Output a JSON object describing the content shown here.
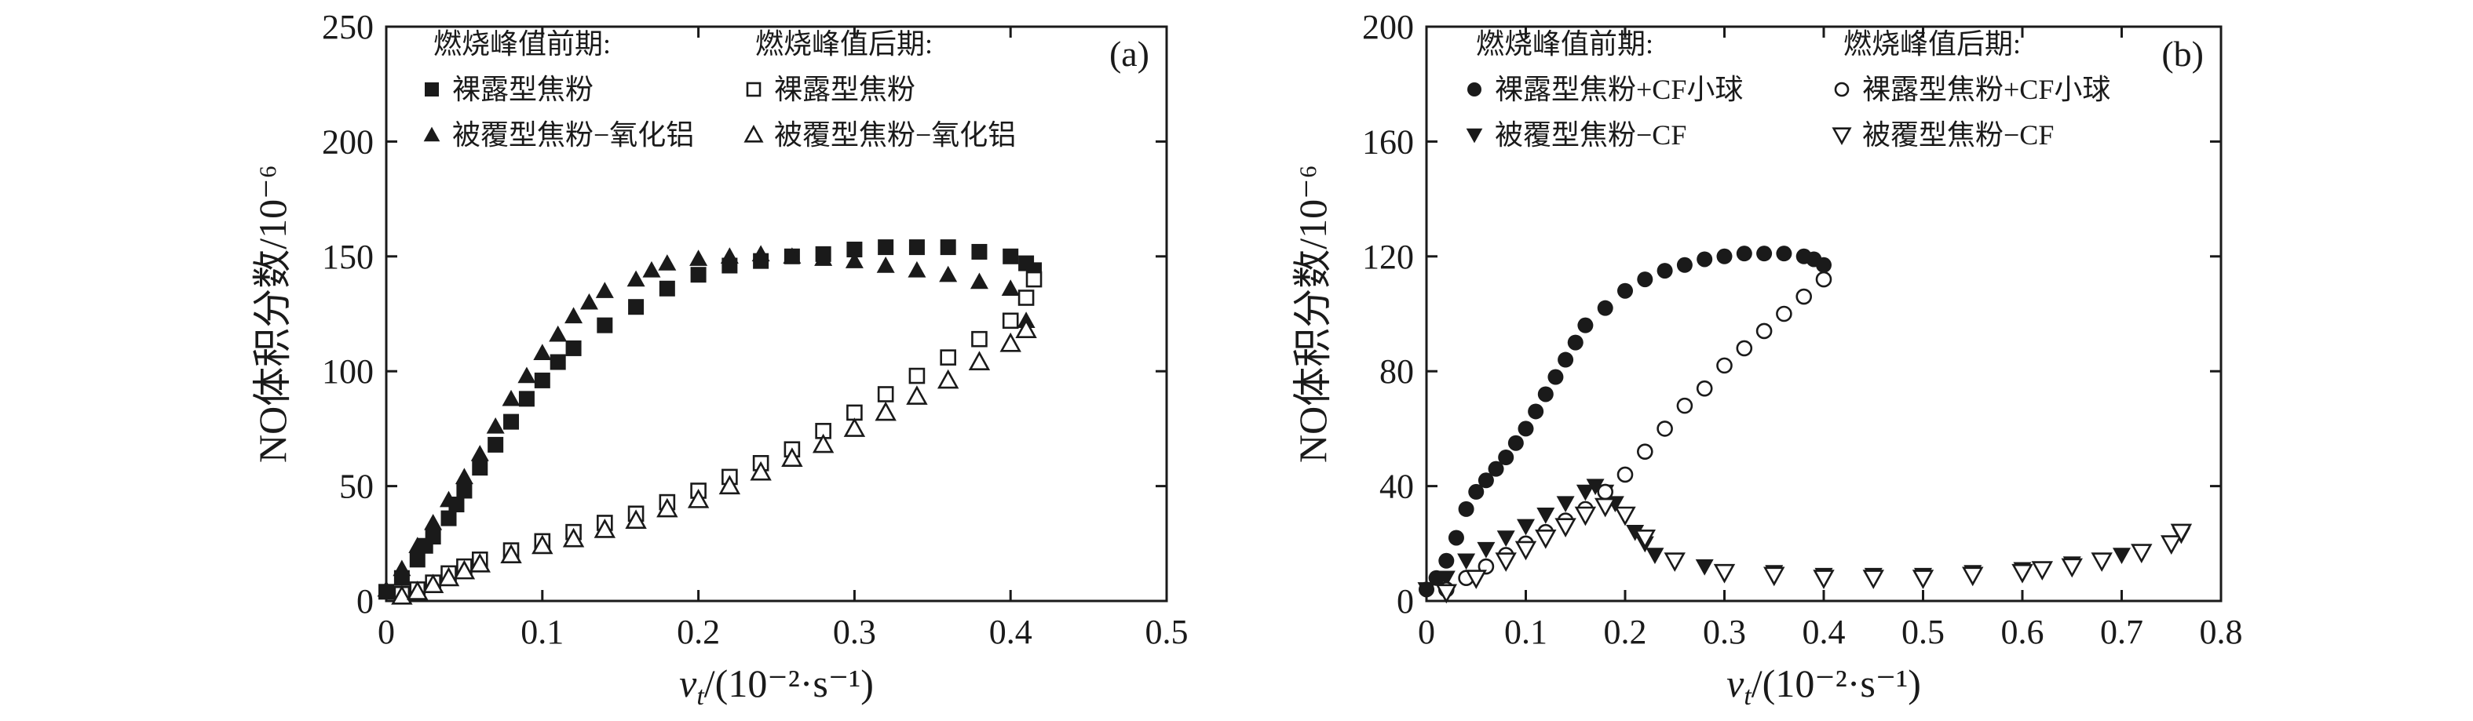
{
  "chart_data": [
    {
      "type": "scatter",
      "panel_tag": "(a)",
      "xlabel": "vt/(10⁻²·s⁻¹)",
      "xlabel_var": "v",
      "xlabel_sub": "t",
      "xlabel_unit": "/(10⁻²·s⁻¹)",
      "ylabel": "NO体积分数/10⁻⁶",
      "xlim": [
        0,
        0.5
      ],
      "ylim": [
        0,
        250
      ],
      "xticks": [
        "0",
        "0.1",
        "0.2",
        "0.3",
        "0.4",
        "0.5"
      ],
      "yticks": [
        "0",
        "50",
        "100",
        "150",
        "200",
        "250"
      ],
      "legend_headers": [
        "燃烧峰值前期:",
        "燃烧峰值后期:"
      ],
      "series": [
        {
          "name": "裸露型焦粉",
          "group": "燃烧峰值前期",
          "marker": "square-filled",
          "x": [
            0.0,
            0.01,
            0.02,
            0.025,
            0.03,
            0.04,
            0.045,
            0.05,
            0.06,
            0.07,
            0.08,
            0.09,
            0.1,
            0.11,
            0.12,
            0.14,
            0.16,
            0.18,
            0.2,
            0.22,
            0.24,
            0.26,
            0.28,
            0.3,
            0.32,
            0.34,
            0.36,
            0.38,
            0.4,
            0.41,
            0.415
          ],
          "y": [
            4,
            10,
            18,
            24,
            28,
            36,
            42,
            48,
            58,
            68,
            78,
            88,
            96,
            104,
            110,
            120,
            128,
            136,
            142,
            146,
            148,
            150,
            151,
            153,
            154,
            154,
            154,
            152,
            150,
            147,
            144
          ]
        },
        {
          "name": "被覆型焦粉−氧化铝",
          "group": "燃烧峰值前期",
          "marker": "triangle-filled",
          "x": [
            0.0,
            0.01,
            0.02,
            0.03,
            0.04,
            0.05,
            0.06,
            0.07,
            0.08,
            0.09,
            0.1,
            0.11,
            0.12,
            0.13,
            0.14,
            0.16,
            0.17,
            0.18,
            0.2,
            0.22,
            0.24,
            0.26,
            0.28,
            0.3,
            0.32,
            0.34,
            0.36,
            0.38,
            0.4,
            0.41
          ],
          "y": [
            5,
            14,
            24,
            34,
            44,
            54,
            64,
            76,
            88,
            98,
            108,
            116,
            124,
            130,
            135,
            140,
            144,
            147,
            149,
            150,
            151,
            150,
            149,
            148,
            146,
            144,
            142,
            139,
            136,
            122
          ]
        },
        {
          "name": "裸露型焦粉",
          "group": "燃烧峰值后期",
          "marker": "square-open",
          "x": [
            0.01,
            0.02,
            0.03,
            0.04,
            0.05,
            0.06,
            0.08,
            0.1,
            0.12,
            0.14,
            0.16,
            0.18,
            0.2,
            0.22,
            0.24,
            0.26,
            0.28,
            0.3,
            0.32,
            0.34,
            0.36,
            0.38,
            0.4,
            0.41,
            0.415
          ],
          "y": [
            3,
            5,
            8,
            12,
            15,
            18,
            22,
            26,
            30,
            34,
            38,
            43,
            48,
            54,
            60,
            66,
            74,
            82,
            90,
            98,
            106,
            114,
            122,
            132,
            140
          ]
        },
        {
          "name": "被覆型焦粉−氧化铝",
          "group": "燃烧峰值后期",
          "marker": "triangle-open",
          "x": [
            0.01,
            0.02,
            0.03,
            0.04,
            0.05,
            0.06,
            0.08,
            0.1,
            0.12,
            0.14,
            0.16,
            0.18,
            0.2,
            0.22,
            0.24,
            0.26,
            0.28,
            0.3,
            0.32,
            0.34,
            0.36,
            0.38,
            0.4,
            0.41
          ],
          "y": [
            2,
            4,
            7,
            10,
            13,
            16,
            20,
            24,
            27,
            31,
            35,
            40,
            44,
            50,
            56,
            62,
            68,
            75,
            82,
            89,
            96,
            104,
            112,
            118
          ]
        }
      ]
    },
    {
      "type": "scatter",
      "panel_tag": "(b)",
      "xlabel": "vt/(10⁻²·s⁻¹)",
      "xlabel_var": "v",
      "xlabel_sub": "t",
      "xlabel_unit": "/(10⁻²·s⁻¹)",
      "ylabel": "NO体积分数/10⁻⁶",
      "xlim": [
        0,
        0.8
      ],
      "ylim": [
        0,
        200
      ],
      "xticks": [
        "0",
        "0.1",
        "0.2",
        "0.3",
        "0.4",
        "0.5",
        "0.6",
        "0.7",
        "0.8"
      ],
      "yticks": [
        "0",
        "40",
        "80",
        "120",
        "160",
        "200"
      ],
      "legend_headers": [
        "燃烧峰值前期:",
        "燃烧峰值后期:"
      ],
      "series": [
        {
          "name": "裸露型焦粉+CF小球",
          "group": "燃烧峰值前期",
          "marker": "circle-filled",
          "x": [
            0.0,
            0.01,
            0.02,
            0.03,
            0.04,
            0.05,
            0.06,
            0.07,
            0.08,
            0.09,
            0.1,
            0.11,
            0.12,
            0.13,
            0.14,
            0.15,
            0.16,
            0.18,
            0.2,
            0.22,
            0.24,
            0.26,
            0.28,
            0.3,
            0.32,
            0.34,
            0.36,
            0.38,
            0.39,
            0.4
          ],
          "y": [
            4,
            8,
            14,
            22,
            32,
            38,
            42,
            46,
            50,
            55,
            60,
            66,
            72,
            78,
            84,
            90,
            96,
            102,
            108,
            112,
            115,
            117,
            119,
            120,
            121,
            121,
            121,
            120,
            119,
            117
          ]
        },
        {
          "name": "被覆型焦粉−CF",
          "group": "燃烧峰值前期",
          "marker": "triangle-down-filled",
          "x": [
            0.0,
            0.02,
            0.04,
            0.06,
            0.08,
            0.1,
            0.12,
            0.14,
            0.16,
            0.17,
            0.18,
            0.19,
            0.2,
            0.21,
            0.22,
            0.23,
            0.25,
            0.28,
            0.3,
            0.35,
            0.4,
            0.45,
            0.5,
            0.55,
            0.6,
            0.65,
            0.7,
            0.75,
            0.76
          ],
          "y": [
            4,
            8,
            14,
            18,
            22,
            26,
            30,
            34,
            38,
            40,
            38,
            34,
            30,
            24,
            20,
            16,
            14,
            12,
            10,
            10,
            9,
            9,
            9,
            10,
            11,
            13,
            16,
            20,
            23
          ]
        },
        {
          "name": "裸露型焦粉+CF小球",
          "group": "燃烧峰值后期",
          "marker": "circle-open",
          "x": [
            0.02,
            0.04,
            0.06,
            0.08,
            0.1,
            0.12,
            0.14,
            0.16,
            0.18,
            0.2,
            0.22,
            0.24,
            0.26,
            0.28,
            0.3,
            0.32,
            0.34,
            0.36,
            0.38,
            0.4
          ],
          "y": [
            4,
            8,
            12,
            16,
            20,
            24,
            28,
            32,
            38,
            44,
            52,
            60,
            68,
            74,
            82,
            88,
            94,
            100,
            106,
            112
          ]
        },
        {
          "name": "被覆型焦粉−CF",
          "group": "燃烧峰值后期",
          "marker": "triangle-down-open",
          "x": [
            0.02,
            0.05,
            0.08,
            0.1,
            0.12,
            0.14,
            0.16,
            0.18,
            0.2,
            0.22,
            0.25,
            0.3,
            0.35,
            0.4,
            0.45,
            0.5,
            0.55,
            0.6,
            0.62,
            0.65,
            0.68,
            0.72,
            0.75,
            0.76
          ],
          "y": [
            3,
            8,
            14,
            18,
            22,
            26,
            30,
            33,
            30,
            22,
            14,
            10,
            9,
            8,
            8,
            8,
            9,
            10,
            11,
            12,
            14,
            17,
            20,
            24
          ]
        }
      ]
    }
  ]
}
